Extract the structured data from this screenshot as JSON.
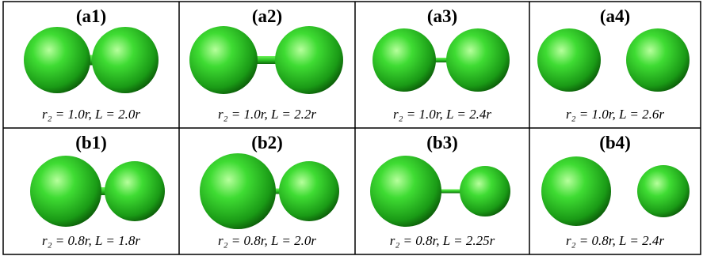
{
  "panels": [
    {
      "label": "(a1)",
      "caption": "r₂ = 1.0r, L = 2.0r"
    },
    {
      "label": "(a2)",
      "caption": "r₂ = 1.0r, L = 2.2r"
    },
    {
      "label": "(a3)",
      "caption": "r₂ = 1.0r, L = 2.4r"
    },
    {
      "label": "(a4)",
      "caption": "r₂ = 1.0r, L = 2.6r"
    },
    {
      "label": "(b1)",
      "caption": "r₂ = 0.8r, L = 1.8r"
    },
    {
      "label": "(b2)",
      "caption": "r₂ = 0.8r, L = 2.0r"
    },
    {
      "label": "(b3)",
      "caption": "r₂ = 0.8r, L = 2.25r"
    },
    {
      "label": "(b4)",
      "caption": "r₂ = 0.8r, L = 2.4r"
    }
  ]
}
